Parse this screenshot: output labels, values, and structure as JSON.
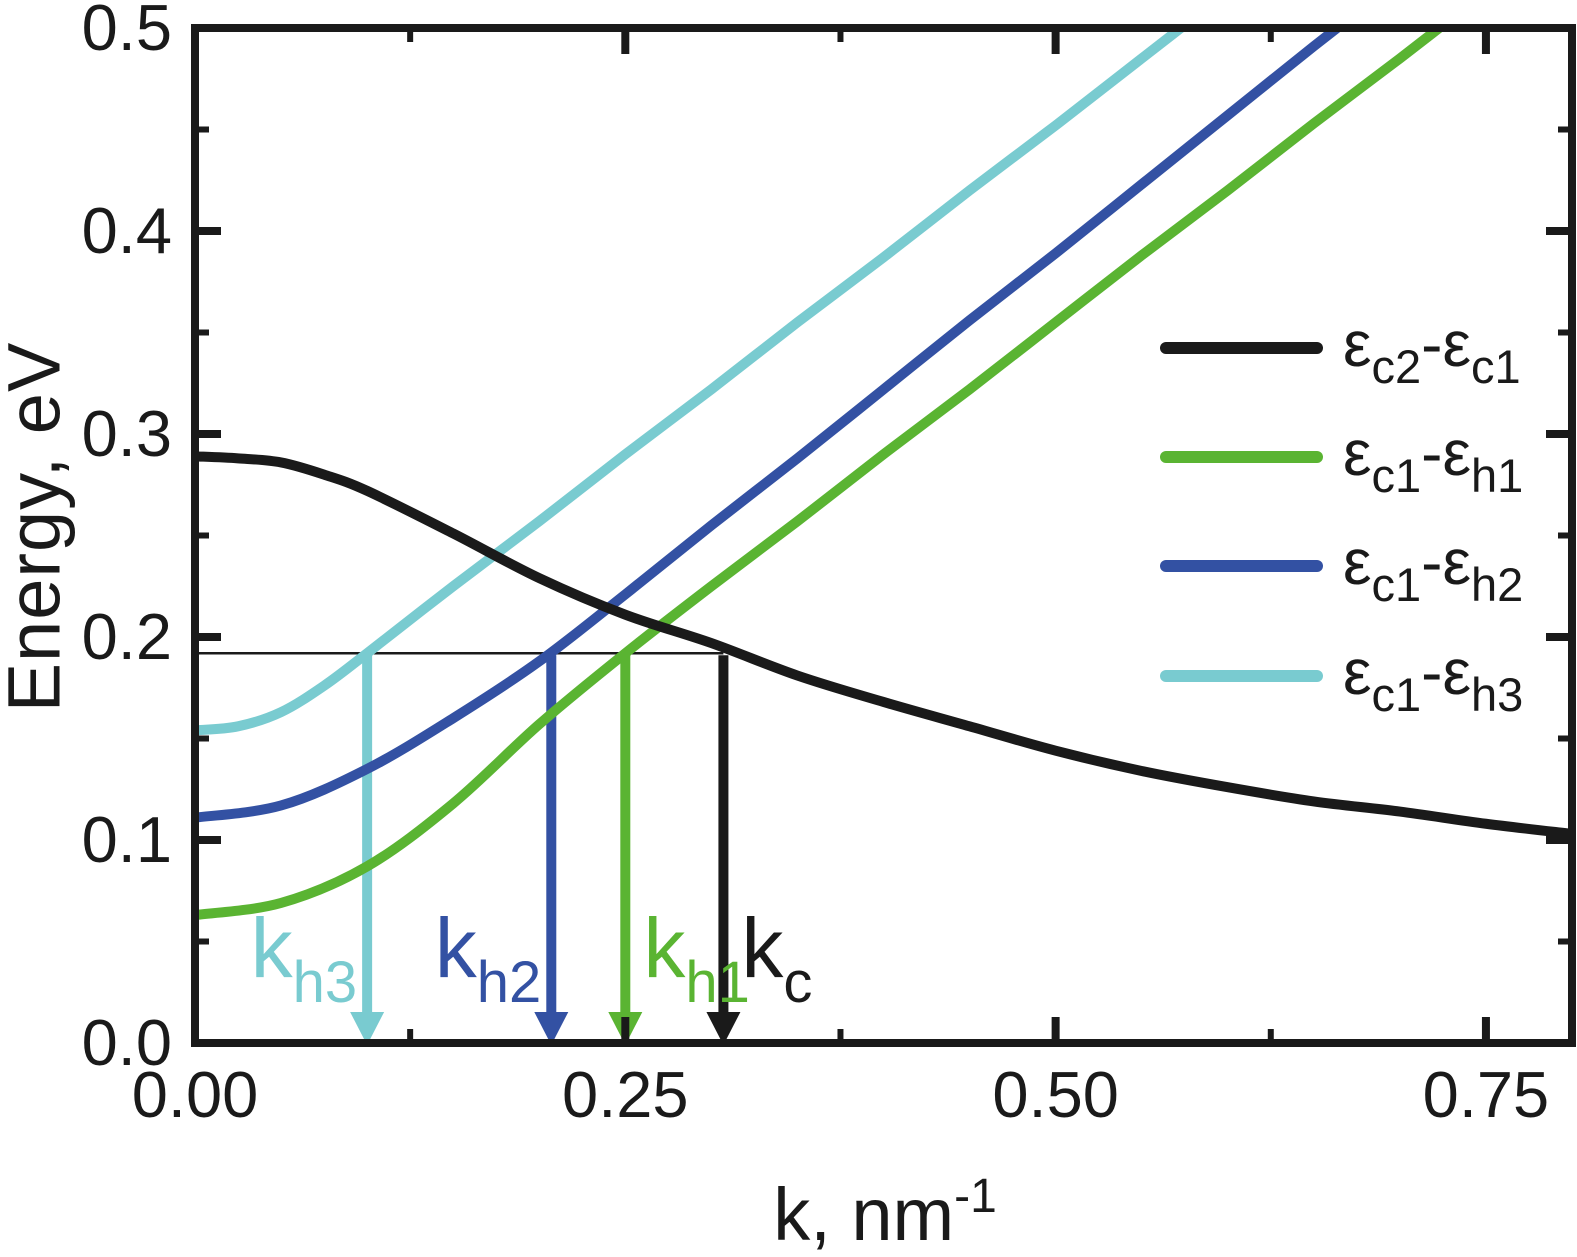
{
  "figure": {
    "ylabel": "Energy, eV",
    "xlabel_main": "k, nm",
    "xlabel_sup": "-1"
  },
  "chart_data": {
    "type": "line",
    "title": "",
    "xlabel": "k, nm^-1",
    "ylabel": "Energy, eV",
    "xlim": [
      0,
      0.8
    ],
    "ylim": [
      0,
      0.5
    ],
    "grid": false,
    "legend_position": "center-right",
    "x_tick_values": [
      0,
      0.25,
      0.5,
      0.75
    ],
    "x_tick_labels": [
      "0.00",
      "0.25",
      "0.50",
      "0.75"
    ],
    "x_minor_ticks": [
      0.125,
      0.375,
      0.625
    ],
    "y_tick_values": [
      0,
      0.1,
      0.2,
      0.3,
      0.4,
      0.5
    ],
    "y_tick_labels": [
      "0.0",
      "0.1",
      "0.2",
      "0.3",
      "0.4",
      "0.5"
    ],
    "y_minor_ticks": [
      0.05,
      0.15,
      0.25,
      0.35,
      0.45
    ],
    "frame_color": "#1a1a1a",
    "series": [
      {
        "name": "ec2-ec1",
        "color": "#1a1a1a",
        "legend": {
          "e1": "ε",
          "s1": "c2",
          "d": "-",
          "e2": "ε",
          "s2": "c1"
        },
        "k": [
          0,
          0.025,
          0.05,
          0.075,
          0.1,
          0.15,
          0.2,
          0.25,
          0.3,
          0.35,
          0.4,
          0.45,
          0.5,
          0.55,
          0.6,
          0.65,
          0.7,
          0.75,
          0.8
        ],
        "E": [
          0.289,
          0.288,
          0.286,
          0.28,
          0.272,
          0.251,
          0.229,
          0.211,
          0.197,
          0.181,
          0.168,
          0.156,
          0.144,
          0.134,
          0.126,
          0.119,
          0.114,
          0.108,
          0.103
        ]
      },
      {
        "name": "ec1-eh1",
        "color": "#5ab432",
        "legend": {
          "e1": "ε",
          "s1": "c1",
          "d": "-",
          "e2": "ε",
          "s2": "h1"
        },
        "k": [
          0,
          0.05,
          0.1,
          0.15,
          0.2,
          0.25,
          0.3,
          0.35,
          0.4,
          0.45,
          0.5,
          0.55,
          0.6,
          0.65,
          0.7,
          0.75
        ],
        "E": [
          0.063,
          0.069,
          0.087,
          0.118,
          0.157,
          0.192,
          0.225,
          0.257,
          0.29,
          0.322,
          0.355,
          0.388,
          0.42,
          0.453,
          0.485,
          0.518
        ]
      },
      {
        "name": "ec1-eh2",
        "color": "#3351a3",
        "legend": {
          "e1": "ε",
          "s1": "c1",
          "d": "-",
          "e2": "ε",
          "s2": "h2"
        },
        "k": [
          0,
          0.05,
          0.1,
          0.15,
          0.2,
          0.25,
          0.3,
          0.35,
          0.4,
          0.45,
          0.5,
          0.55,
          0.6,
          0.65,
          0.7
        ],
        "E": [
          0.111,
          0.117,
          0.135,
          0.16,
          0.188,
          0.221,
          0.255,
          0.288,
          0.322,
          0.356,
          0.389,
          0.423,
          0.457,
          0.491,
          0.524
        ]
      },
      {
        "name": "ec1-eh3",
        "color": "#79cbd0",
        "legend": {
          "e1": "ε",
          "s1": "c1",
          "d": "-",
          "e2": "ε",
          "s2": "h3"
        },
        "k": [
          0,
          0.025,
          0.05,
          0.075,
          0.1,
          0.15,
          0.2,
          0.25,
          0.3,
          0.35,
          0.4,
          0.45,
          0.5,
          0.55,
          0.6
        ],
        "E": [
          0.154,
          0.156,
          0.163,
          0.176,
          0.192,
          0.225,
          0.257,
          0.29,
          0.322,
          0.355,
          0.387,
          0.42,
          0.452,
          0.485,
          0.518
        ]
      }
    ],
    "reference_line": {
      "E": 0.192,
      "k_start": 0,
      "k_end": 0.307
    },
    "arrows": [
      {
        "name": "k_h3",
        "base": "k",
        "sub": "h3",
        "k": 0.1,
        "color": "#79cbd0",
        "label_side": "left"
      },
      {
        "name": "k_h2",
        "base": "k",
        "sub": "h2",
        "k": 0.207,
        "color": "#3351a3",
        "label_side": "left"
      },
      {
        "name": "k_h1",
        "base": "k",
        "sub": "h1",
        "k": 0.25,
        "color": "#5ab432",
        "label_side": "right"
      },
      {
        "name": "k_c",
        "base": "k",
        "sub": "c",
        "k": 0.307,
        "color": "#1a1a1a",
        "label_side": "right"
      }
    ]
  }
}
